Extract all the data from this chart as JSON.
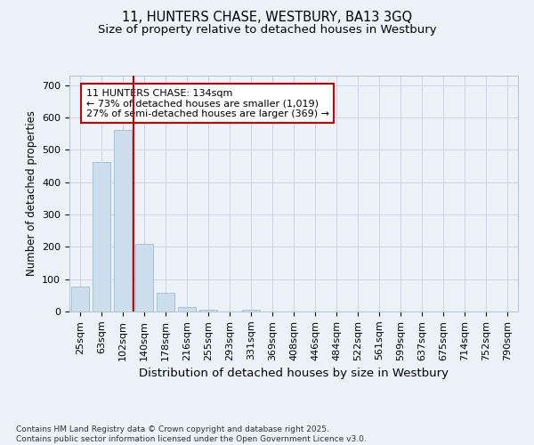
{
  "title_line1": "11, HUNTERS CHASE, WESTBURY, BA13 3GQ",
  "title_line2": "Size of property relative to detached houses in Westbury",
  "xlabel": "Distribution of detached houses by size in Westbury",
  "ylabel": "Number of detached properties",
  "categories": [
    "25sqm",
    "63sqm",
    "102sqm",
    "140sqm",
    "178sqm",
    "216sqm",
    "255sqm",
    "293sqm",
    "331sqm",
    "369sqm",
    "408sqm",
    "446sqm",
    "484sqm",
    "522sqm",
    "561sqm",
    "599sqm",
    "637sqm",
    "675sqm",
    "714sqm",
    "752sqm",
    "790sqm"
  ],
  "values": [
    78,
    462,
    563,
    208,
    57,
    15,
    6,
    0,
    5,
    0,
    0,
    0,
    0,
    0,
    0,
    0,
    0,
    0,
    0,
    0,
    0
  ],
  "bar_color": "#ccdded",
  "bar_edge_color": "#9bbdd4",
  "vline_color": "#cc0000",
  "annotation_box_text": "11 HUNTERS CHASE: 134sqm\n← 73% of detached houses are smaller (1,019)\n27% of semi-detached houses are larger (369) →",
  "ylim": [
    0,
    730
  ],
  "yticks": [
    0,
    100,
    200,
    300,
    400,
    500,
    600,
    700
  ],
  "grid_color": "#c8d8e8",
  "background_color": "#edf2f8",
  "footer_text": "Contains HM Land Registry data © Crown copyright and database right 2025.\nContains public sector information licensed under the Open Government Licence v3.0.",
  "title_fontsize": 10.5,
  "subtitle_fontsize": 9.5,
  "xlabel_fontsize": 9.5,
  "ylabel_fontsize": 8.5,
  "tick_label_fontsize": 8,
  "annotation_fontsize": 8,
  "footer_fontsize": 6.5
}
